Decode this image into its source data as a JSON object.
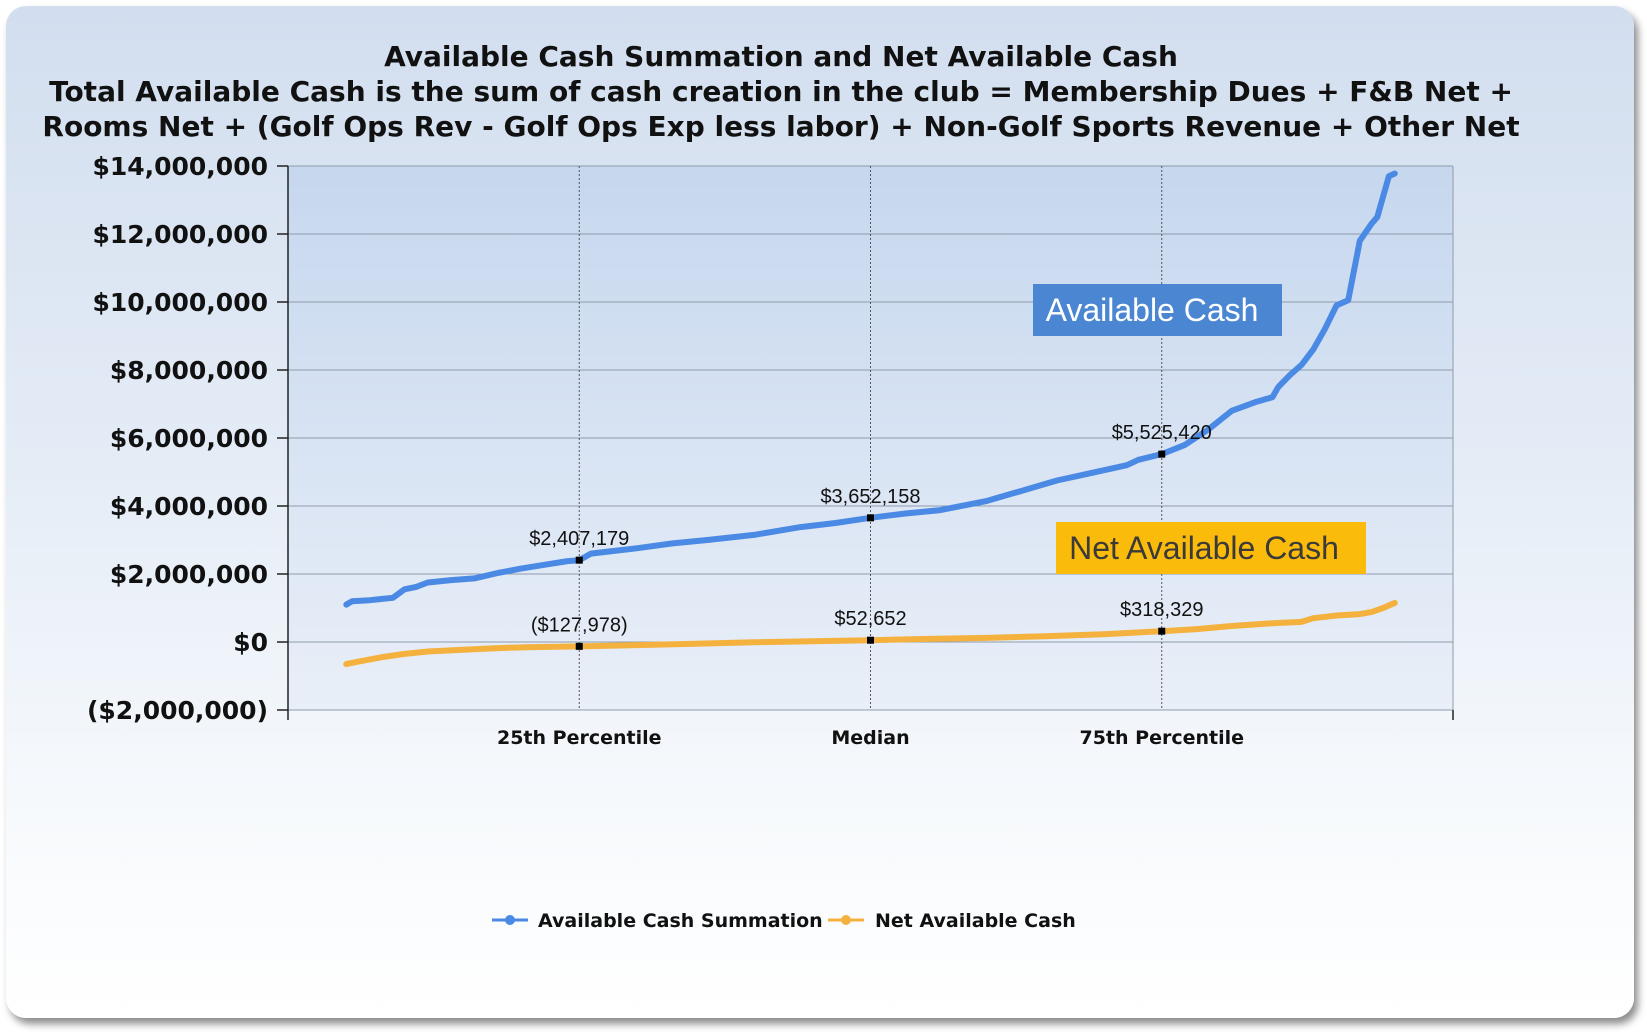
{
  "chart_data": {
    "type": "line",
    "title": [
      "Available Cash Summation and Net Available Cash",
      "Total Available Cash is the sum of cash creation in the club = Membership Dues + F&B Net +",
      "Rooms Net + (Golf Ops Rev - Golf Ops Exp less labor) + Non-Golf Sports Revenue + Other Net"
    ],
    "ylim": [
      -2000000,
      14000000
    ],
    "yticks": [
      {
        "value": 14000000,
        "label": "$14,000,000"
      },
      {
        "value": 12000000,
        "label": "$12,000,000"
      },
      {
        "value": 10000000,
        "label": "$10,000,000"
      },
      {
        "value": 8000000,
        "label": "$8,000,000"
      },
      {
        "value": 6000000,
        "label": "$6,000,000"
      },
      {
        "value": 4000000,
        "label": "$4,000,000"
      },
      {
        "value": 2000000,
        "label": "$2,000,000"
      },
      {
        "value": 0,
        "label": "$0"
      },
      {
        "value": -2000000,
        "label": "($2,000,000)"
      }
    ],
    "xlim": [
      0,
      100
    ],
    "xticks": [
      {
        "value": 25,
        "label": "25th Percentile"
      },
      {
        "value": 50,
        "label": "Median"
      },
      {
        "value": 75,
        "label": "75th Percentile"
      }
    ],
    "grid": true,
    "legend_position": "bottom",
    "series": [
      {
        "name": "Available Cash Summation",
        "color": "#4a8ae4",
        "x": [
          5,
          5.5,
          7,
          9,
          10,
          11,
          12,
          14,
          16,
          18,
          20,
          22,
          24,
          25,
          26,
          28,
          30,
          33,
          36,
          40,
          44,
          47,
          50,
          53,
          56,
          60,
          63,
          66,
          68,
          70,
          72,
          73,
          75,
          77,
          79,
          81,
          83,
          84.5,
          85,
          86,
          87,
          88,
          89,
          90,
          91,
          92,
          92.5,
          93,
          93.5,
          94,
          94.5,
          95
        ],
        "y": [
          1100000,
          1200000,
          1230000,
          1300000,
          1550000,
          1620000,
          1750000,
          1820000,
          1870000,
          2030000,
          2160000,
          2270000,
          2380000,
          2407179,
          2600000,
          2680000,
          2760000,
          2900000,
          3000000,
          3150000,
          3380000,
          3500000,
          3652158,
          3780000,
          3880000,
          4150000,
          4450000,
          4750000,
          4900000,
          5050000,
          5200000,
          5360000,
          5525420,
          5800000,
          6250000,
          6800000,
          7050000,
          7200000,
          7500000,
          7850000,
          8150000,
          8600000,
          9200000,
          9900000,
          10050000,
          11800000,
          12050000,
          12300000,
          12500000,
          13100000,
          13700000,
          13780000
        ]
      },
      {
        "name": "Net Available Cash",
        "color": "#f4b13e",
        "x": [
          5,
          6,
          8,
          10,
          12,
          15,
          18,
          21,
          25,
          30,
          35,
          40,
          45,
          50,
          55,
          60,
          65,
          70,
          75,
          78,
          81,
          84,
          87,
          88,
          90,
          92,
          93,
          94,
          95
        ],
        "y": [
          -650000,
          -580000,
          -450000,
          -350000,
          -280000,
          -230000,
          -180000,
          -150000,
          -127978,
          -90000,
          -50000,
          -10000,
          20000,
          52652,
          90000,
          120000,
          170000,
          230000,
          318329,
          380000,
          470000,
          540000,
          590000,
          700000,
          780000,
          820000,
          880000,
          1000000,
          1150000
        ]
      }
    ],
    "annotations": [
      {
        "series": 0,
        "x": 25,
        "y": 2407179,
        "label": "$2,407,179"
      },
      {
        "series": 0,
        "x": 50,
        "y": 3652158,
        "label": "$3,652,158"
      },
      {
        "series": 0,
        "x": 75,
        "y": 5525420,
        "label": "$5,525,420"
      },
      {
        "series": 1,
        "x": 25,
        "y": -127978,
        "label": "($127,978)"
      },
      {
        "series": 1,
        "x": 50,
        "y": 52652,
        "label": "$52,652"
      },
      {
        "series": 1,
        "x": 75,
        "y": 318329,
        "label": "$318,329"
      }
    ],
    "callouts": [
      {
        "text": "Available Cash",
        "bg": "#4a86d2",
        "fg": "#ffffff"
      },
      {
        "text": "Net Available Cash",
        "bg": "#fbbb0b",
        "fg": "#3a3a3a"
      }
    ]
  }
}
